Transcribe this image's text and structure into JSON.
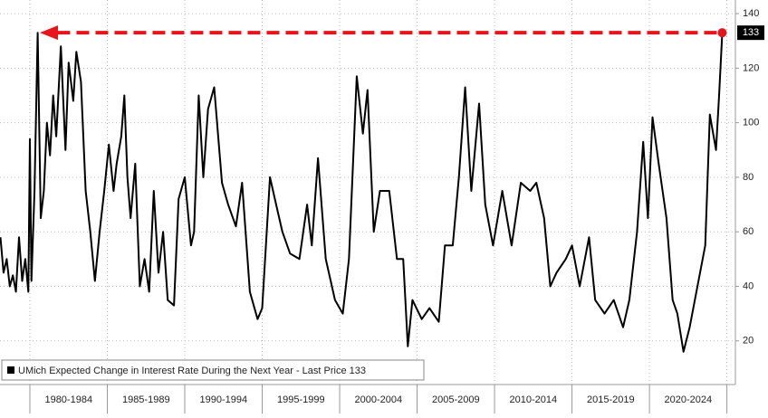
{
  "chart_data": {
    "type": "line",
    "x": [
      1978.1,
      1978.3,
      1978.5,
      1978.7,
      1978.9,
      1979.1,
      1979.3,
      1979.5,
      1979.7,
      1979.9,
      1980.0,
      1980.1,
      1980.3,
      1980.5,
      1980.7,
      1980.9,
      1981.1,
      1981.3,
      1981.5,
      1981.7,
      1982.0,
      1982.3,
      1982.5,
      1982.8,
      1983.0,
      1983.3,
      1983.6,
      1983.9,
      1984.2,
      1984.5,
      1984.8,
      1985.1,
      1985.4,
      1985.6,
      1985.9,
      1986.1,
      1986.3,
      1986.5,
      1986.8,
      1987.1,
      1987.4,
      1987.7,
      1988.0,
      1988.3,
      1988.6,
      1988.9,
      1989.3,
      1989.6,
      1990.0,
      1990.4,
      1990.6,
      1990.9,
      1991.2,
      1991.5,
      1991.9,
      1992.4,
      1992.8,
      1993.3,
      1993.7,
      1994.2,
      1994.7,
      1995.0,
      1995.5,
      1995.9,
      1996.3,
      1996.8,
      1997.4,
      1997.9,
      1998.2,
      1998.6,
      1999.1,
      1999.7,
      2000.2,
      2000.6,
      2001.1,
      2001.5,
      2001.8,
      2002.2,
      2002.6,
      2003.2,
      2003.7,
      2004.1,
      2004.4,
      2004.7,
      2005.3,
      2005.8,
      2006.4,
      2006.8,
      2007.3,
      2007.7,
      2008.1,
      2008.5,
      2009.0,
      2009.4,
      2009.9,
      2010.5,
      2011.1,
      2011.7,
      2012.3,
      2012.7,
      2013.2,
      2013.6,
      2014.0,
      2014.6,
      2015.0,
      2015.5,
      2016.1,
      2016.5,
      2017.1,
      2017.7,
      2018.3,
      2018.7,
      2019.2,
      2019.6,
      2019.9,
      2020.2,
      2020.6,
      2021.1,
      2021.5,
      2021.8,
      2022.2,
      2022.6,
      2023.1,
      2023.6,
      2023.9,
      2024.3,
      2024.5,
      2024.7
    ],
    "series": [
      {
        "name": "UMich Expected Change in Interest Rate During the Next Year - Last Price 133",
        "color": "#000000",
        "values": [
          58,
          45,
          50,
          40,
          44,
          38,
          58,
          42,
          50,
          38,
          94,
          42,
          75,
          133,
          65,
          75,
          100,
          88,
          110,
          95,
          128,
          90,
          122,
          108,
          126,
          115,
          75,
          60,
          42,
          60,
          75,
          92,
          75,
          85,
          95,
          110,
          80,
          65,
          85,
          40,
          50,
          38,
          75,
          45,
          60,
          35,
          33,
          72,
          80,
          55,
          60,
          110,
          80,
          105,
          113,
          78,
          70,
          62,
          78,
          38,
          28,
          32,
          80,
          70,
          60,
          52,
          50,
          70,
          55,
          87,
          50,
          35,
          30,
          50,
          117,
          96,
          112,
          60,
          75,
          75,
          50,
          50,
          18,
          35,
          28,
          32,
          27,
          55,
          55,
          80,
          113,
          75,
          107,
          70,
          55,
          75,
          55,
          78,
          75,
          78,
          65,
          40,
          45,
          50,
          55,
          40,
          58,
          35,
          30,
          35,
          25,
          35,
          60,
          93,
          65,
          102,
          85,
          65,
          35,
          30,
          16,
          25,
          40,
          55,
          103,
          90,
          110,
          133
        ]
      }
    ],
    "last_price": 133,
    "xlim": [
      1978.07,
      2025.55
    ],
    "xticks": [
      1980,
      1985,
      1990,
      1995,
      2000,
      2005,
      2010,
      2015,
      2020,
      2025
    ],
    "x_period_labels": [
      "1980-1984",
      "1985-1989",
      "1990-1994",
      "1995-1999",
      "2000-2004",
      "2005-2009",
      "2010-2014",
      "2015-2019",
      "2020-2024"
    ],
    "ylim": [
      4,
      145
    ],
    "yticks": [
      20,
      40,
      60,
      80,
      100,
      120,
      140
    ],
    "grid": true,
    "annotation_color": "#e8141b"
  }
}
